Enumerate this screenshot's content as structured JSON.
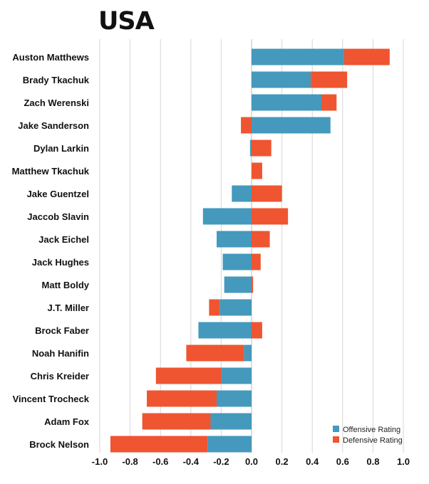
{
  "chart_data": {
    "type": "bar",
    "title": "USA",
    "stacked": "diverging",
    "orientation": "horizontal",
    "xlim": [
      -1.0,
      1.0
    ],
    "grid": true,
    "legend_position": "bottom-right",
    "xticks": [
      "-1.0",
      "-0.8",
      "-0.6",
      "-0.4",
      "-0.2",
      "0.0",
      "0.2",
      "0.4",
      "0.6",
      "0.8",
      "1.0"
    ],
    "categories": [
      "Auston Matthews",
      "Brady Tkachuk",
      "Zach Werenski",
      "Jake Sanderson",
      "Dylan Larkin",
      "Matthew Tkachuk",
      "Jake Guentzel",
      "Jaccob Slavin",
      "Jack Eichel",
      "Jack Hughes",
      "Matt Boldy",
      "J.T. Miller",
      "Brock Faber",
      "Noah Hanifin",
      "Chris Kreider",
      "Vincent Trocheck",
      "Adam Fox",
      "Brock Nelson"
    ],
    "series": [
      {
        "name": "Offensive Rating",
        "color": "#4499bd",
        "values": [
          0.61,
          0.39,
          0.46,
          0.52,
          -0.01,
          0.0,
          -0.13,
          -0.32,
          -0.23,
          -0.19,
          -0.18,
          -0.21,
          -0.35,
          -0.05,
          -0.2,
          -0.23,
          -0.27,
          -0.29
        ]
      },
      {
        "name": "Defensive Rating",
        "color": "#ee5530",
        "values": [
          0.3,
          0.24,
          0.1,
          -0.07,
          0.13,
          0.07,
          0.2,
          0.24,
          0.12,
          0.06,
          0.01,
          -0.07,
          0.07,
          -0.38,
          -0.43,
          -0.46,
          -0.45,
          -0.64
        ]
      }
    ]
  }
}
